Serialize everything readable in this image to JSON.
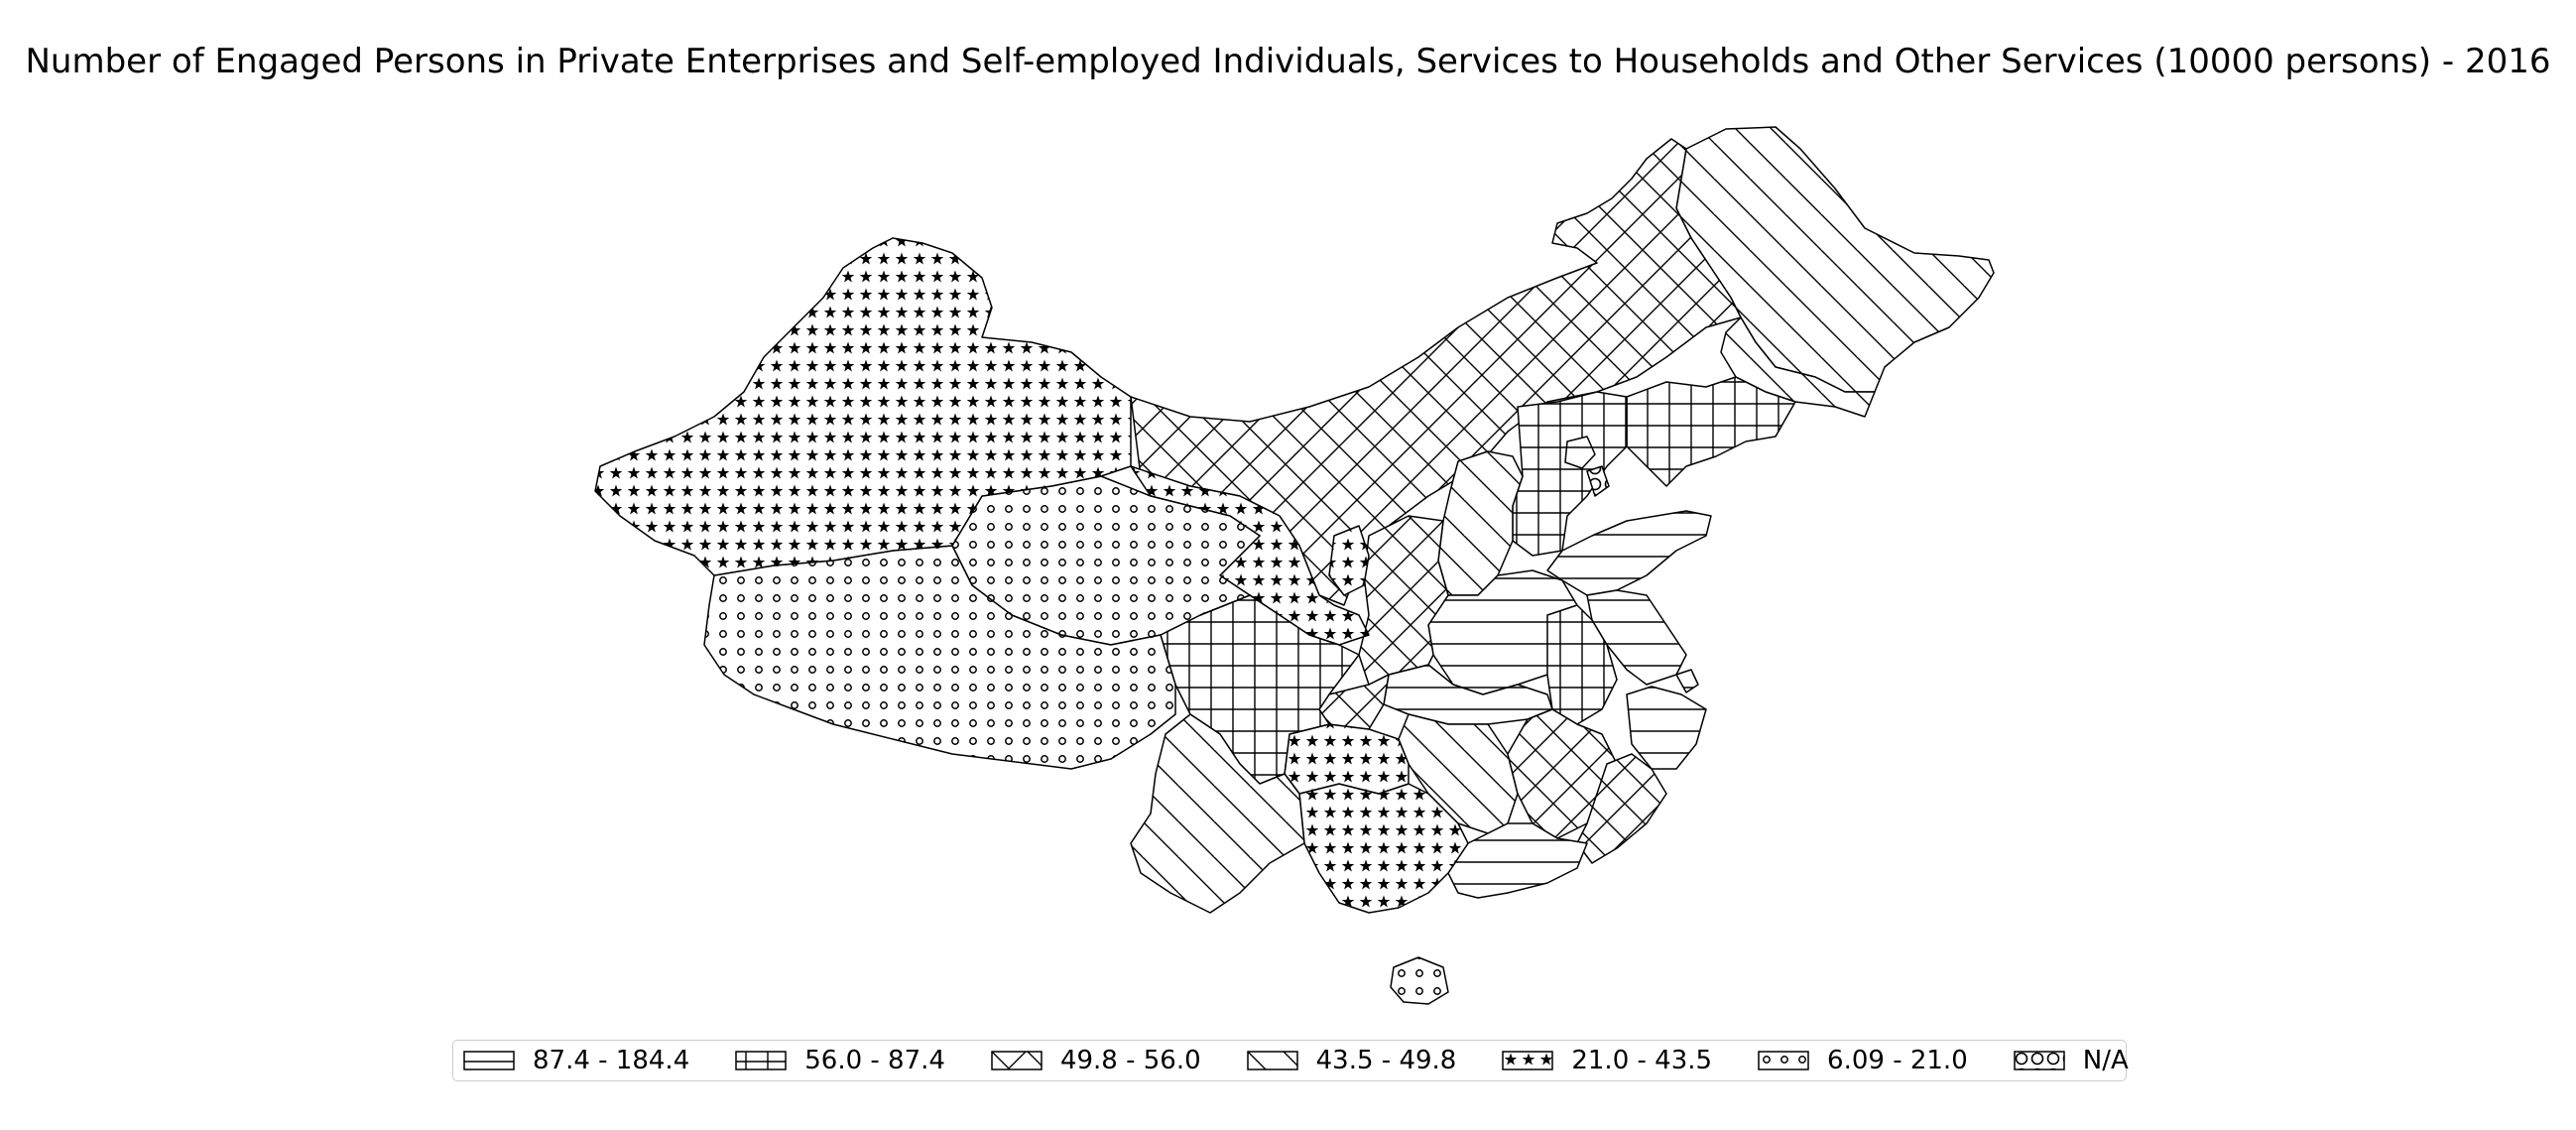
{
  "title": "Number of Engaged Persons in Private Enterprises and Self-employed Individuals, Services to Households and Other Services (10000 persons) - 2016",
  "legend": [
    {
      "label": "87.4 - 184.4",
      "pattern": "hline"
    },
    {
      "label": "56.0 - 87.4",
      "pattern": "grid"
    },
    {
      "label": "49.8 - 56.0",
      "pattern": "cross"
    },
    {
      "label": "43.5 - 49.8",
      "pattern": "diag"
    },
    {
      "label": "21.0 - 43.5",
      "pattern": "star"
    },
    {
      "label": "6.09 - 21.0",
      "pattern": "dot"
    },
    {
      "label": "N/A",
      "pattern": "bigdot"
    }
  ],
  "colors": {
    "stroke": "#000000",
    "fill": "#ffffff",
    "legend_border": "#cccccc"
  }
}
